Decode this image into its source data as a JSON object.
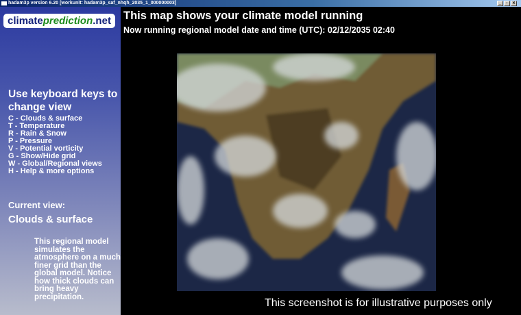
{
  "window": {
    "title": "hadam3p version 6.20 [workunit: hadam3p_saf_nhqh_2035_1_000000003]",
    "buttons": [
      "_",
      "▫",
      "✕"
    ]
  },
  "logo": {
    "part1": "climate",
    "part2": "prediction",
    "part3": ".net"
  },
  "sidebar": {
    "keys_title": "Use keyboard keys to change view",
    "keys": [
      "C - Clouds & surface",
      "T - Temperature",
      "R - Rain & Snow",
      "P - Pressure",
      "V - Potential vorticity",
      "G - Show/Hide grid",
      "W - Global/Regional views",
      "H - Help & more options"
    ],
    "current_view_label": "Current view:",
    "current_view": "Clouds & surface",
    "description": "This regional model simulates the atmosphere on a much finer grid than the global model. Notice how thick clouds can bring heavy precipitation."
  },
  "header": {
    "title": "This map shows your climate model running",
    "subtitle": "Now running regional model date and time (UTC): 02/12/2035 02:40"
  },
  "disclaimer": "This screenshot is for illustrative purposes only",
  "colors": {
    "ocean": "#1a2444",
    "land": "#6b5a35",
    "vegetation": "#4a5a30",
    "cloud": "#d8dcdc"
  }
}
